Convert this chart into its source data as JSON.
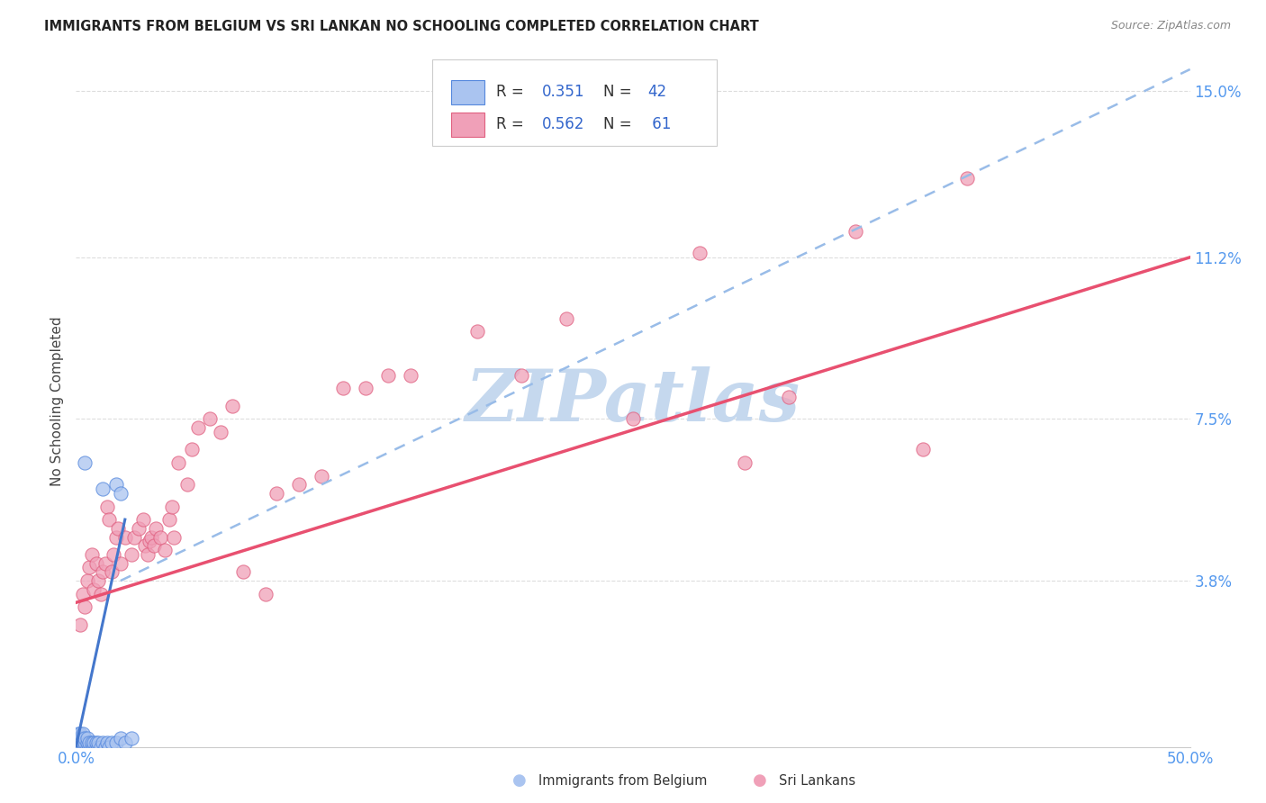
{
  "title": "IMMIGRANTS FROM BELGIUM VS SRI LANKAN NO SCHOOLING COMPLETED CORRELATION CHART",
  "source": "Source: ZipAtlas.com",
  "ylabel_label": "No Schooling Completed",
  "x_min": 0.0,
  "x_max": 0.5,
  "y_min": 0.0,
  "y_max": 0.158,
  "x_tick_labels": [
    "0.0%",
    "",
    "",
    "",
    "",
    "50.0%"
  ],
  "x_tick_values": [
    0.0,
    0.1,
    0.2,
    0.3,
    0.4,
    0.5
  ],
  "y_tick_labels": [
    "15.0%",
    "11.2%",
    "7.5%",
    "3.8%"
  ],
  "y_tick_values": [
    0.15,
    0.112,
    0.075,
    0.038
  ],
  "color_belgium": "#aac4f0",
  "color_srilanka": "#f0a0b8",
  "color_belgium_edge": "#5588dd",
  "color_srilanka_edge": "#e06080",
  "color_belgium_line": "#4477cc",
  "color_srilanka_line": "#e85070",
  "color_dashed_line": "#99bce8",
  "background_color": "#ffffff",
  "watermark_color": "#c5d8ee",
  "tick_color": "#5599ee",
  "grid_color": "#dddddd",
  "belgium_scatter": [
    [
      0.001,
      0.0
    ],
    [
      0.001,
      0.001
    ],
    [
      0.001,
      0.002
    ],
    [
      0.001,
      0.003
    ],
    [
      0.002,
      0.0
    ],
    [
      0.002,
      0.001
    ],
    [
      0.002,
      0.002
    ],
    [
      0.002,
      0.003
    ],
    [
      0.003,
      0.0
    ],
    [
      0.003,
      0.001
    ],
    [
      0.003,
      0.002
    ],
    [
      0.003,
      0.003
    ],
    [
      0.004,
      0.0
    ],
    [
      0.004,
      0.001
    ],
    [
      0.004,
      0.002
    ],
    [
      0.005,
      0.0
    ],
    [
      0.005,
      0.001
    ],
    [
      0.005,
      0.002
    ],
    [
      0.006,
      0.0
    ],
    [
      0.006,
      0.001
    ],
    [
      0.007,
      0.0
    ],
    [
      0.007,
      0.001
    ],
    [
      0.008,
      0.0
    ],
    [
      0.008,
      0.001
    ],
    [
      0.009,
      0.0
    ],
    [
      0.009,
      0.001
    ],
    [
      0.01,
      0.0
    ],
    [
      0.01,
      0.001
    ],
    [
      0.011,
      0.0
    ],
    [
      0.012,
      0.001
    ],
    [
      0.013,
      0.0
    ],
    [
      0.014,
      0.001
    ],
    [
      0.015,
      0.0
    ],
    [
      0.016,
      0.001
    ],
    [
      0.018,
      0.001
    ],
    [
      0.02,
      0.002
    ],
    [
      0.022,
      0.001
    ],
    [
      0.025,
      0.002
    ],
    [
      0.004,
      0.065
    ],
    [
      0.012,
      0.059
    ],
    [
      0.018,
      0.06
    ],
    [
      0.02,
      0.058
    ]
  ],
  "srilanka_scatter": [
    [
      0.002,
      0.028
    ],
    [
      0.003,
      0.035
    ],
    [
      0.004,
      0.032
    ],
    [
      0.005,
      0.038
    ],
    [
      0.006,
      0.041
    ],
    [
      0.007,
      0.044
    ],
    [
      0.008,
      0.036
    ],
    [
      0.009,
      0.042
    ],
    [
      0.01,
      0.038
    ],
    [
      0.011,
      0.035
    ],
    [
      0.012,
      0.04
    ],
    [
      0.013,
      0.042
    ],
    [
      0.014,
      0.055
    ],
    [
      0.015,
      0.052
    ],
    [
      0.016,
      0.04
    ],
    [
      0.017,
      0.044
    ],
    [
      0.018,
      0.048
    ],
    [
      0.019,
      0.05
    ],
    [
      0.02,
      0.042
    ],
    [
      0.022,
      0.048
    ],
    [
      0.025,
      0.044
    ],
    [
      0.026,
      0.048
    ],
    [
      0.028,
      0.05
    ],
    [
      0.03,
      0.052
    ],
    [
      0.031,
      0.046
    ],
    [
      0.032,
      0.044
    ],
    [
      0.033,
      0.047
    ],
    [
      0.034,
      0.048
    ],
    [
      0.035,
      0.046
    ],
    [
      0.036,
      0.05
    ],
    [
      0.038,
      0.048
    ],
    [
      0.04,
      0.045
    ],
    [
      0.042,
      0.052
    ],
    [
      0.043,
      0.055
    ],
    [
      0.044,
      0.048
    ],
    [
      0.046,
      0.065
    ],
    [
      0.05,
      0.06
    ],
    [
      0.052,
      0.068
    ],
    [
      0.055,
      0.073
    ],
    [
      0.06,
      0.075
    ],
    [
      0.065,
      0.072
    ],
    [
      0.07,
      0.078
    ],
    [
      0.075,
      0.04
    ],
    [
      0.085,
      0.035
    ],
    [
      0.09,
      0.058
    ],
    [
      0.1,
      0.06
    ],
    [
      0.11,
      0.062
    ],
    [
      0.12,
      0.082
    ],
    [
      0.13,
      0.082
    ],
    [
      0.14,
      0.085
    ],
    [
      0.15,
      0.085
    ],
    [
      0.18,
      0.095
    ],
    [
      0.2,
      0.085
    ],
    [
      0.22,
      0.098
    ],
    [
      0.25,
      0.075
    ],
    [
      0.28,
      0.113
    ],
    [
      0.3,
      0.065
    ],
    [
      0.32,
      0.08
    ],
    [
      0.35,
      0.118
    ],
    [
      0.38,
      0.068
    ],
    [
      0.4,
      0.13
    ]
  ],
  "belgium_line_x": [
    0.0,
    0.022
  ],
  "belgium_line_y": [
    0.0,
    0.052
  ],
  "srilanka_line_x": [
    0.0,
    0.5
  ],
  "srilanka_line_y": [
    0.033,
    0.112
  ],
  "dashed_line_x": [
    0.02,
    0.5
  ],
  "dashed_line_y": [
    0.038,
    0.155
  ]
}
